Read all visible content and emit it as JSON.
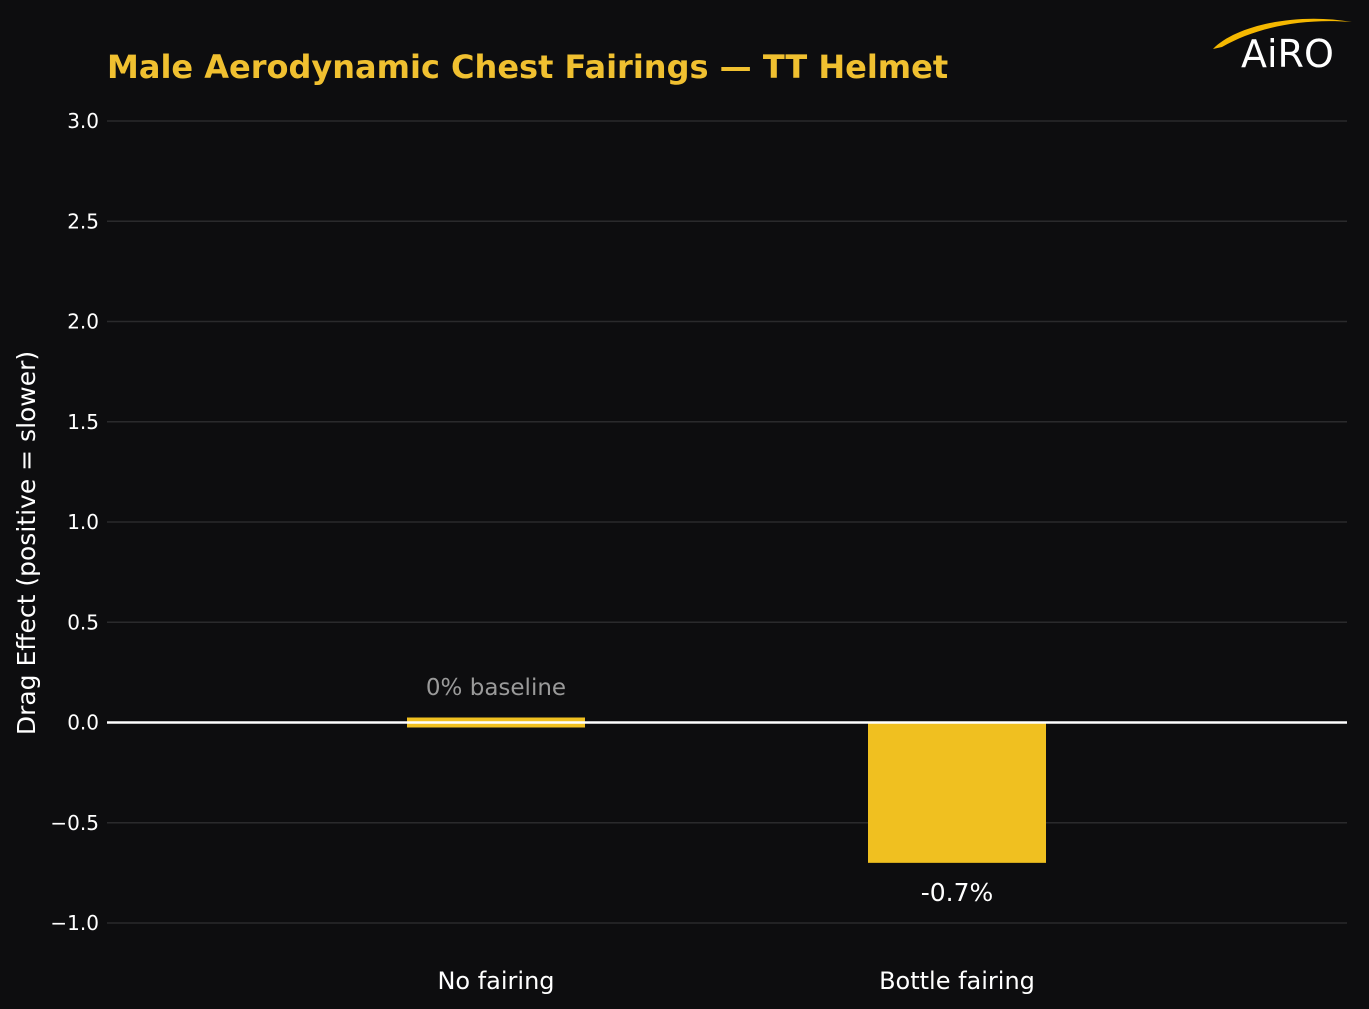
{
  "colors": {
    "background": "#0d0d0f",
    "title": "#f0c030",
    "bar": "#f0c020",
    "grid": "#2a2a2c",
    "zero_line": "#ffffff",
    "text": "#ffffff",
    "annotation_muted": "#9a9a9a",
    "logo_swoosh": "#f5b800"
  },
  "logo": {
    "text": "AiRO",
    "icon": "airo-swoosh-icon"
  },
  "chart_data": {
    "type": "bar",
    "title": "Male Aerodynamic Chest Fairings — TT Helmet",
    "xlabel": "",
    "ylabel": "Drag Effect (positive = slower)",
    "categories": [
      "No fairing",
      "Bottle fairing"
    ],
    "values": [
      0,
      -0.7
    ],
    "ylim": [
      -1.0,
      3.0
    ],
    "yticks": [
      -1.0,
      -0.5,
      0.0,
      0.5,
      1.0,
      1.5,
      2.0,
      2.5,
      3.0
    ],
    "ytick_labels": [
      "−1.0",
      "−0.5",
      "0.0",
      "0.5",
      "1.0",
      "1.5",
      "2.0",
      "2.5",
      "3.0"
    ],
    "annotations": [
      "0% baseline",
      "-0.7%"
    ],
    "grid": true,
    "legend": "none"
  }
}
